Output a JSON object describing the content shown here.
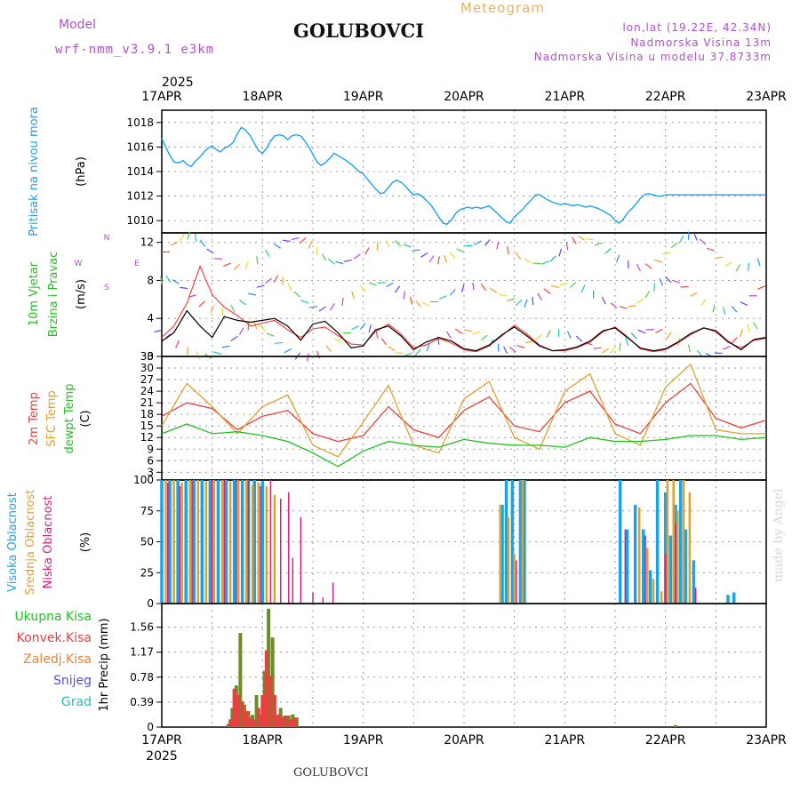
{
  "header": {
    "model_label": "Model",
    "model_name": "wrf-nmm_v3.9.1 e3km",
    "station_title": "GOLUBOVCI",
    "meteogram_label": "Meteogram",
    "lonlat": "lon,lat (19.22E, 42.34N)",
    "elevation": "Nadmorska Visina 13m",
    "model_elevation": "Nadmorska Visina u modelu 37.8733m",
    "year": "2025",
    "footer_station": "GOLUBOVCI",
    "credit": "made by Angel"
  },
  "colors": {
    "pressure": "#1aa3e8",
    "temp2m": "#e8403a",
    "sfc": "#e0a030",
    "dew": "#20c020",
    "high_cloud": "#1aa3e8",
    "mid_cloud": "#e0a030",
    "low_cloud": "#d0207a",
    "header_purple": "#b050d0",
    "meteogram_orange": "#e8b060"
  },
  "chart_data": [
    {
      "id": "pressure",
      "type": "line",
      "ylabel": "Pritisak na nivou mora",
      "unit": "(hPa)",
      "ylim": [
        1009,
        1019
      ],
      "yticks": [
        1010,
        1012,
        1014,
        1016,
        1018
      ],
      "x_days": [
        0,
        0.04,
        0.08,
        0.12,
        0.17,
        0.21,
        0.25,
        0.29,
        0.33,
        0.38,
        0.42,
        0.46,
        0.5,
        0.54,
        0.58,
        0.62,
        0.67,
        0.71,
        0.75,
        0.79,
        0.83,
        0.88,
        0.92,
        0.96,
        1.0,
        1.04,
        1.08,
        1.12,
        1.17,
        1.21,
        1.25,
        1.29,
        1.33,
        1.38,
        1.42,
        1.46,
        1.5,
        1.54,
        1.58,
        1.62,
        1.67,
        1.71,
        1.75,
        1.79,
        1.83,
        1.88,
        1.92,
        1.96,
        2.0,
        2.04,
        2.08,
        2.12,
        2.17,
        2.21,
        2.25,
        2.29,
        2.33,
        2.38,
        2.42,
        2.46,
        2.5,
        2.54,
        2.58,
        2.62,
        2.67,
        2.71,
        2.75,
        2.79,
        2.83,
        2.88,
        2.92,
        2.96,
        3.0,
        3.04,
        3.08,
        3.12,
        3.17,
        3.21,
        3.25,
        3.29,
        3.33,
        3.38,
        3.42,
        3.46,
        3.5,
        3.54,
        3.58,
        3.62,
        3.67,
        3.71,
        3.75,
        3.79,
        3.83,
        3.88,
        3.92,
        3.96,
        4.0,
        4.04,
        4.08,
        4.12,
        4.17,
        4.21,
        4.25,
        4.29,
        4.33,
        4.38,
        4.42,
        4.46,
        4.5,
        4.54,
        4.58,
        4.62,
        4.67,
        4.71,
        4.75,
        4.79,
        4.83,
        4.88,
        4.92,
        4.96,
        5.0,
        5.04,
        5.08,
        5.12,
        5.17,
        5.21,
        5.25,
        5.29,
        5.33,
        5.38,
        5.42,
        5.46,
        5.5,
        5.54,
        5.58,
        5.62,
        5.67,
        5.71,
        5.75,
        5.79,
        5.83,
        5.88,
        5.92,
        5.96,
        6.0
      ],
      "values": [
        1016.7,
        1016.0,
        1015.3,
        1014.8,
        1014.7,
        1014.9,
        1014.6,
        1014.4,
        1014.8,
        1015.2,
        1015.6,
        1015.9,
        1016.1,
        1015.8,
        1015.6,
        1015.9,
        1016.1,
        1016.4,
        1017.1,
        1017.6,
        1017.4,
        1016.9,
        1016.3,
        1015.7,
        1015.5,
        1015.9,
        1016.5,
        1016.9,
        1017.0,
        1016.9,
        1016.6,
        1016.9,
        1017.0,
        1016.9,
        1016.5,
        1016.0,
        1015.4,
        1014.8,
        1014.5,
        1014.7,
        1015.1,
        1015.5,
        1015.3,
        1015.1,
        1014.9,
        1014.6,
        1014.3,
        1014.0,
        1013.8,
        1013.4,
        1013.0,
        1012.6,
        1012.2,
        1012.3,
        1012.7,
        1013.1,
        1013.3,
        1013.1,
        1012.8,
        1012.4,
        1012.1,
        1012.2,
        1012.0,
        1011.7,
        1011.3,
        1010.8,
        1010.3,
        1009.8,
        1009.7,
        1010.1,
        1010.6,
        1010.9,
        1011.0,
        1011.1,
        1011.0,
        1011.1,
        1011.0,
        1011.1,
        1011.2,
        1010.9,
        1010.6,
        1010.2,
        1009.9,
        1009.8,
        1010.3,
        1010.6,
        1010.9,
        1011.3,
        1011.7,
        1012.1,
        1012.1,
        1011.9,
        1011.7,
        1011.5,
        1011.4,
        1011.3,
        1011.4,
        1011.3,
        1011.2,
        1011.3,
        1011.2,
        1011.1,
        1011.2,
        1011.1,
        1011.0,
        1010.8,
        1010.6,
        1010.4,
        1010.0,
        1009.8,
        1010.1,
        1010.6,
        1011.0,
        1011.4,
        1011.8,
        1012.1,
        1012.2,
        1012.1,
        1012.0,
        1012.0,
        1012.1,
        1012.1,
        1012.1,
        1012.1,
        1012.1,
        1012.1,
        1012.1,
        1012.1,
        1012.1,
        1012.1,
        1012.1,
        1012.1,
        1012.1,
        1012.1,
        1012.1,
        1012.1,
        1012.1,
        1012.1,
        1012.1,
        1012.1,
        1012.1,
        1012.1,
        1012.1,
        1012.1,
        1012.1
      ]
    },
    {
      "id": "wind",
      "type": "line",
      "ylabel": "10m Vjetar",
      "ylabel2": "Brzina i Pravac",
      "unit": "(m/s)",
      "ylim": [
        0,
        13
      ],
      "yticks": [
        0,
        4,
        8,
        12
      ],
      "compass": {
        "n": "N",
        "e": "E",
        "w": "W",
        "s": "S"
      },
      "x_days": [
        0,
        0.12,
        0.25,
        0.38,
        0.5,
        0.62,
        0.75,
        0.88,
        1.0,
        1.12,
        1.25,
        1.38,
        1.5,
        1.62,
        1.75,
        1.88,
        2.0,
        2.12,
        2.25,
        2.38,
        2.5,
        2.62,
        2.75,
        2.88,
        3.0,
        3.12,
        3.25,
        3.38,
        3.5,
        3.62,
        3.75,
        3.88,
        4.0,
        4.12,
        4.25,
        4.38,
        4.5,
        4.62,
        4.75,
        4.88,
        5.0,
        5.12,
        5.25,
        5.38,
        5.5,
        5.62,
        5.75,
        5.88,
        6.0
      ],
      "speed": [
        1.6,
        2.5,
        4.8,
        3.2,
        2.0,
        4.2,
        3.8,
        3.6,
        3.8,
        4.0,
        3.2,
        1.7,
        3.4,
        3.7,
        2.5,
        0.9,
        1.1,
        2.8,
        3.2,
        2.1,
        0.7,
        1.5,
        2.0,
        1.6,
        0.8,
        0.6,
        1.2,
        2.3,
        3.1,
        2.2,
        1.1,
        0.6,
        0.7,
        1.0,
        1.6,
        2.7,
        3.0,
        2.0,
        0.9,
        0.6,
        0.8,
        1.5,
        2.4,
        3.0,
        2.7,
        1.6,
        0.7,
        1.8,
        2.0
      ],
      "speed_2": [
        2.0,
        3.2,
        5.6,
        9.5,
        6.5,
        5.2,
        4.3,
        3.2,
        3.5,
        3.8,
        2.8,
        2.0,
        2.9,
        3.1,
        2.2,
        1.3,
        1.2,
        2.6,
        3.4,
        2.3,
        0.9,
        1.2,
        1.9,
        1.4,
        0.7,
        0.5,
        1.1,
        2.2,
        3.3,
        2.4,
        1.2,
        0.6,
        0.6,
        0.9,
        1.5,
        2.6,
        3.1,
        2.1,
        0.8,
        0.5,
        0.7,
        1.4,
        2.3,
        3.0,
        2.6,
        1.5,
        0.9,
        1.7,
        1.9
      ]
    },
    {
      "id": "temperature",
      "type": "line",
      "ylabel": "2m Temp",
      "ylabel2": "SFC Temp",
      "ylabel3": "dewpt Temp",
      "unit": "(C)",
      "ylim": [
        1,
        33
      ],
      "yticks": [
        3,
        6,
        9,
        12,
        15,
        18,
        21,
        24,
        27,
        30,
        33
      ],
      "x_days": [
        0,
        0.25,
        0.5,
        0.75,
        1.0,
        1.25,
        1.5,
        1.75,
        2.0,
        2.25,
        2.5,
        2.75,
        3.0,
        3.25,
        3.5,
        3.75,
        4.0,
        4.25,
        4.5,
        4.75,
        5.0,
        5.25,
        5.5,
        5.75,
        6.0
      ],
      "series": [
        {
          "name": "2m Temp",
          "values": [
            17.5,
            21.0,
            19.5,
            14.0,
            17.5,
            19.0,
            13.0,
            11.0,
            12.5,
            20.0,
            14.0,
            12.0,
            19.0,
            22.5,
            15.0,
            13.5,
            21.0,
            24.0,
            15.5,
            13.0,
            21.0,
            26.0,
            17.0,
            14.5,
            16.5
          ]
        },
        {
          "name": "SFC Temp",
          "values": [
            15.0,
            26.0,
            20.0,
            13.0,
            20.0,
            23.0,
            10.0,
            7.0,
            16.0,
            25.5,
            10.0,
            8.0,
            22.0,
            26.5,
            12.0,
            9.0,
            24.0,
            28.5,
            13.0,
            10.0,
            25.0,
            31.0,
            14.0,
            13.0,
            13.0
          ]
        },
        {
          "name": "dewpt Temp",
          "values": [
            13.0,
            15.5,
            13.0,
            13.5,
            12.5,
            11.0,
            8.0,
            4.5,
            8.5,
            11.0,
            10.0,
            9.5,
            11.5,
            10.5,
            10.0,
            10.0,
            9.5,
            12.0,
            11.0,
            11.0,
            11.5,
            12.5,
            12.5,
            11.5,
            12.0
          ]
        }
      ]
    },
    {
      "id": "clouds",
      "type": "bar",
      "ylabel": "Visoka Oblacnost",
      "ylabel2": "Srednja Oblacnost",
      "ylabel3": "Niska Oblacnost",
      "unit": "(%)",
      "ylim": [
        0,
        100
      ],
      "yticks": [
        0,
        25,
        50,
        75,
        100
      ],
      "series": [
        {
          "name": "Visoka Oblacnost",
          "x_days": [
            0.0,
            0.08,
            0.16,
            0.24,
            0.32,
            0.4,
            0.48,
            0.56,
            0.64,
            0.72,
            0.8,
            0.86,
            0.92,
            1.0,
            3.38,
            3.42,
            3.48,
            3.56,
            3.6,
            4.55,
            4.62,
            4.7,
            4.78,
            4.85,
            4.92,
            5.0,
            5.05,
            5.1,
            5.15,
            5.2,
            5.28,
            5.62,
            5.68
          ],
          "values": [
            100,
            100,
            100,
            100,
            100,
            100,
            100,
            100,
            100,
            100,
            100,
            100,
            100,
            99,
            80,
            100,
            100,
            100,
            100,
            100,
            60,
            80,
            60,
            27,
            100,
            90,
            55,
            80,
            100,
            60,
            35,
            7,
            9
          ]
        },
        {
          "name": "Srednja Oblacnost",
          "x_days": [
            0.04,
            0.12,
            0.2,
            0.28,
            0.36,
            0.44,
            0.52,
            0.6,
            0.68,
            0.76,
            0.84,
            0.9,
            0.96,
            1.04,
            1.12,
            3.36,
            3.44,
            3.5,
            3.58,
            4.74,
            4.82,
            4.88,
            4.96,
            5.02,
            5.08,
            5.12,
            5.18,
            5.24
          ],
          "values": [
            100,
            100,
            98,
            100,
            100,
            99,
            100,
            100,
            99,
            100,
            100,
            96,
            98,
            95,
            88,
            80,
            70,
            40,
            100,
            78,
            45,
            20,
            10,
            100,
            100,
            75,
            100,
            90
          ]
        },
        {
          "name": "Niska Oblacnost",
          "x_days": [
            0.06,
            0.18,
            0.3,
            0.5,
            0.62,
            0.74,
            0.86,
            0.98,
            1.08,
            1.18,
            1.26,
            1.3,
            1.38,
            1.5,
            1.6,
            1.7,
            3.52,
            4.6,
            4.8,
            5.0,
            5.1,
            5.3
          ],
          "values": [
            98,
            95,
            100,
            100,
            100,
            100,
            100,
            95,
            100,
            85,
            90,
            37,
            70,
            9,
            5,
            17,
            35,
            60,
            55,
            40,
            65,
            13
          ]
        }
      ]
    },
    {
      "id": "precip",
      "type": "bar",
      "ylabel": "1hr Precip",
      "unit": "(mm)",
      "ylim": [
        0,
        1.93
      ],
      "yticks": [
        0,
        0.39,
        0.78,
        1.17,
        1.56
      ],
      "legend": [
        "Ukupna Kisa",
        "Konvek.Kisa",
        "Zaledj.Kisa",
        "Snijeg",
        "Grad"
      ],
      "series": [
        {
          "name": "Ukupna Kisa",
          "x_days": [
            0.66,
            0.7,
            0.74,
            0.78,
            0.82,
            0.86,
            0.9,
            0.94,
            0.98,
            1.02,
            1.06,
            1.1,
            1.14,
            1.18,
            1.22,
            1.26,
            1.3,
            1.34,
            5.1
          ],
          "values": [
            0.05,
            0.3,
            0.65,
            1.47,
            0.35,
            0.25,
            0.19,
            0.5,
            0.2,
            0.88,
            1.85,
            1.4,
            0.18,
            0.3,
            0.18,
            0.18,
            0.2,
            0.15,
            0.03
          ]
        },
        {
          "name": "Konvek.Kisa",
          "x_days": [
            0.68,
            0.72,
            0.76,
            0.8,
            0.84,
            0.88,
            0.92,
            0.96,
            1.0,
            1.04,
            1.08,
            1.12,
            1.16,
            1.2,
            1.24,
            1.28,
            1.32
          ],
          "values": [
            0.12,
            0.6,
            0.5,
            0.4,
            0.25,
            0.15,
            0.12,
            0.3,
            0.5,
            1.2,
            0.8,
            0.5,
            0.2,
            0.15,
            0.18,
            0.12,
            0.15
          ]
        }
      ]
    }
  ],
  "x_axis": {
    "start_year": "2025",
    "dates": [
      "17APR",
      "18APR",
      "19APR",
      "20APR",
      "21APR",
      "22APR",
      "23APR"
    ]
  }
}
